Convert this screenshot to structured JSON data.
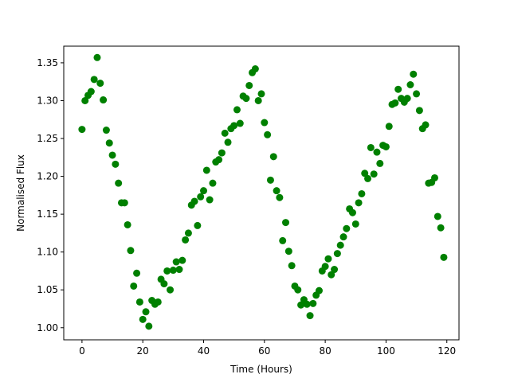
{
  "chart_data": {
    "type": "scatter",
    "title": "",
    "xlabel": "Time (Hours)",
    "ylabel": "Normalised Flux",
    "xlim": [
      -6,
      124
    ],
    "ylim": [
      0.984,
      1.372
    ],
    "xticks": [
      0,
      20,
      40,
      60,
      80,
      100,
      120
    ],
    "yticks": [
      1.0,
      1.05,
      1.1,
      1.15,
      1.2,
      1.25,
      1.3,
      1.35
    ],
    "xtick_labels": [
      "0",
      "20",
      "40",
      "60",
      "80",
      "100",
      "120"
    ],
    "ytick_labels": [
      "1.00",
      "1.05",
      "1.10",
      "1.15",
      "1.20",
      "1.25",
      "1.30",
      "1.35"
    ],
    "grid": false,
    "marker_color": "#008000",
    "series": [
      {
        "x": [
          0,
          1,
          2,
          3,
          4,
          5,
          6,
          7,
          8,
          9,
          10,
          11,
          12,
          13,
          14,
          15,
          16,
          17,
          18,
          19,
          20,
          21,
          22,
          23,
          24,
          25,
          26,
          27,
          28,
          29,
          30,
          31,
          32,
          33,
          34,
          35,
          36,
          37,
          38,
          39,
          40,
          41,
          42,
          43,
          44,
          45,
          46,
          47,
          48,
          49,
          50,
          51,
          52,
          53,
          54,
          55,
          56,
          57,
          58,
          59,
          60,
          61,
          62,
          63,
          64,
          65,
          66,
          67,
          68,
          69,
          70,
          71,
          72,
          73,
          74,
          75,
          76,
          77,
          78,
          79,
          80,
          81,
          82,
          83,
          84,
          85,
          86,
          87,
          88,
          89,
          90,
          91,
          92,
          93,
          94,
          95,
          96,
          97,
          98,
          99,
          100,
          101,
          102,
          103,
          104,
          105,
          106,
          107,
          108,
          109,
          110,
          111,
          112,
          113,
          114,
          115,
          116,
          117,
          118,
          119
        ],
        "y": [
          1.262,
          1.3,
          1.307,
          1.312,
          1.328,
          1.357,
          1.323,
          1.301,
          1.261,
          1.244,
          1.228,
          1.216,
          1.191,
          1.165,
          1.165,
          1.136,
          1.102,
          1.055,
          1.072,
          1.034,
          1.011,
          1.021,
          1.002,
          1.036,
          1.031,
          1.034,
          1.064,
          1.058,
          1.075,
          1.05,
          1.076,
          1.087,
          1.077,
          1.089,
          1.116,
          1.125,
          1.162,
          1.167,
          1.135,
          1.173,
          1.181,
          1.208,
          1.169,
          1.191,
          1.219,
          1.222,
          1.231,
          1.257,
          1.245,
          1.263,
          1.267,
          1.288,
          1.27,
          1.306,
          1.303,
          1.32,
          1.337,
          1.342,
          1.3,
          1.309,
          1.271,
          1.255,
          1.195,
          1.226,
          1.181,
          1.172,
          1.115,
          1.139,
          1.101,
          1.082,
          1.055,
          1.05,
          1.03,
          1.037,
          1.031,
          1.016,
          1.032,
          1.043,
          1.049,
          1.075,
          1.081,
          1.091,
          1.07,
          1.077,
          1.098,
          1.109,
          1.12,
          1.131,
          1.157,
          1.152,
          1.137,
          1.165,
          1.177,
          1.204,
          1.197,
          1.238,
          1.203,
          1.232,
          1.217,
          1.241,
          1.239,
          1.266,
          1.295,
          1.297,
          1.315,
          1.303,
          1.298,
          1.303,
          1.321,
          1.335,
          1.309,
          1.287,
          1.263,
          1.268,
          1.191,
          1.192,
          1.198,
          1.147,
          1.132,
          1.093
        ]
      }
    ]
  }
}
